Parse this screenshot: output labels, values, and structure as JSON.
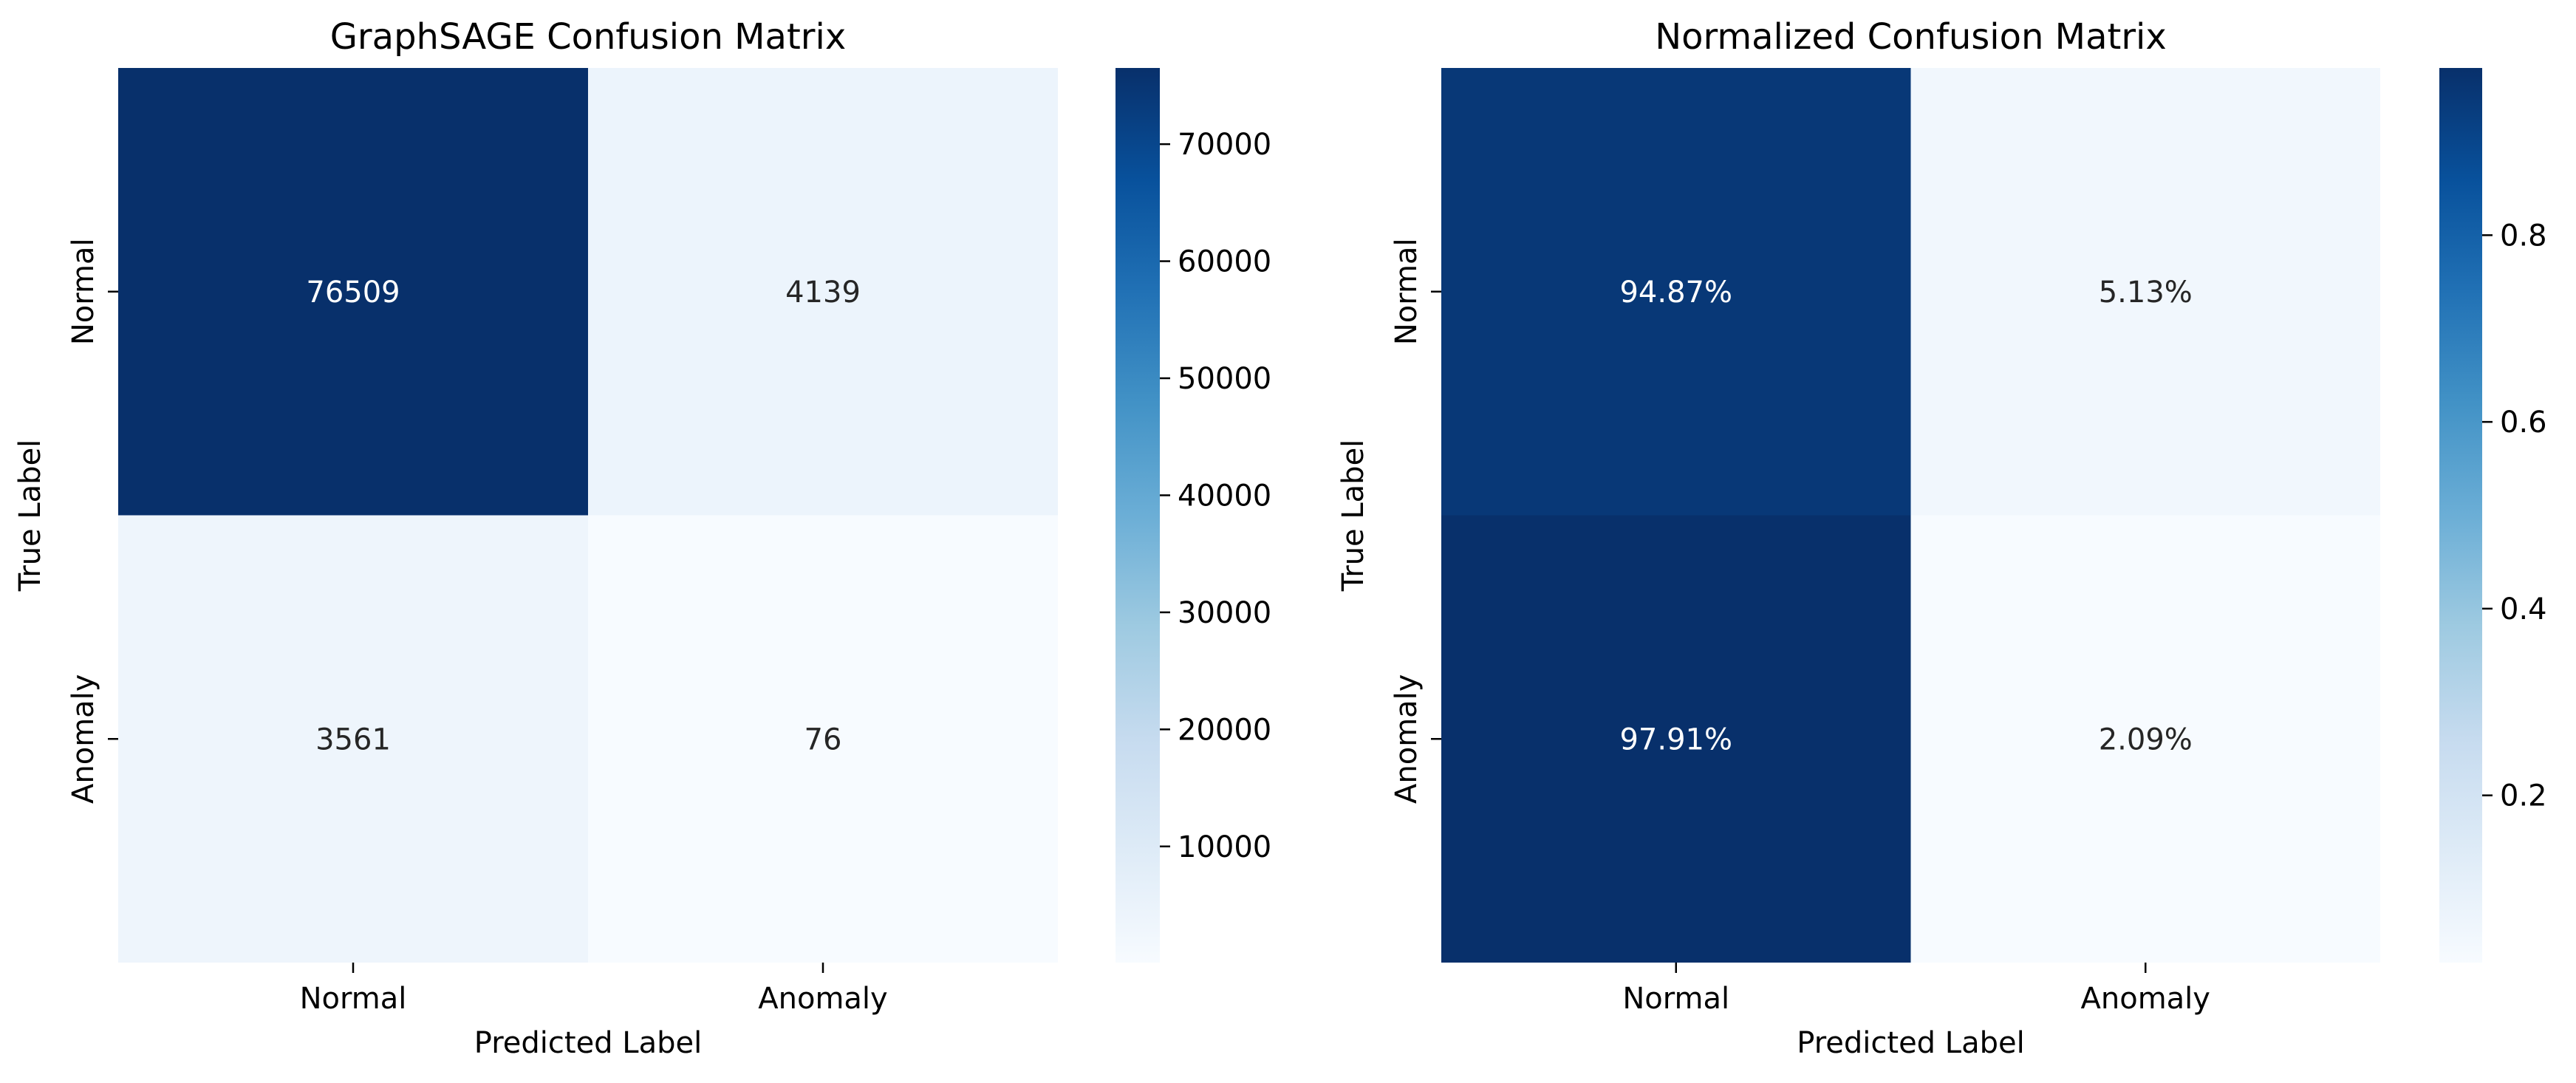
{
  "chart_data": [
    {
      "type": "heatmap",
      "title": "GraphSAGE Confusion Matrix",
      "xlabel": "Predicted Label",
      "ylabel": "True Label",
      "x_categories": [
        "Normal",
        "Anomaly"
      ],
      "y_categories": [
        "Normal",
        "Anomaly"
      ],
      "values": [
        [
          76509,
          4139
        ],
        [
          3561,
          76
        ]
      ],
      "cell_labels": [
        [
          "76509",
          "4139"
        ],
        [
          "3561",
          "76"
        ]
      ],
      "colormap": "Blues",
      "color_range": [
        76,
        76509
      ],
      "colorbar_ticks": [
        10000,
        20000,
        30000,
        40000,
        50000,
        60000,
        70000
      ],
      "colorbar_tick_labels": [
        "10000",
        "20000",
        "30000",
        "40000",
        "50000",
        "60000",
        "70000"
      ]
    },
    {
      "type": "heatmap",
      "title": "Normalized Confusion Matrix",
      "xlabel": "Predicted Label",
      "ylabel": "True Label",
      "x_categories": [
        "Normal",
        "Anomaly"
      ],
      "y_categories": [
        "Normal",
        "Anomaly"
      ],
      "values": [
        [
          0.9487,
          0.0513
        ],
        [
          0.9791,
          0.0209
        ]
      ],
      "cell_labels": [
        [
          "94.87%",
          "5.13%"
        ],
        [
          "97.91%",
          "2.09%"
        ]
      ],
      "colormap": "Blues",
      "color_range": [
        0.0209,
        0.9791
      ],
      "colorbar_ticks": [
        0.2,
        0.4,
        0.6,
        0.8
      ],
      "colorbar_tick_labels": [
        "0.2",
        "0.4",
        "0.6",
        "0.8"
      ]
    }
  ]
}
